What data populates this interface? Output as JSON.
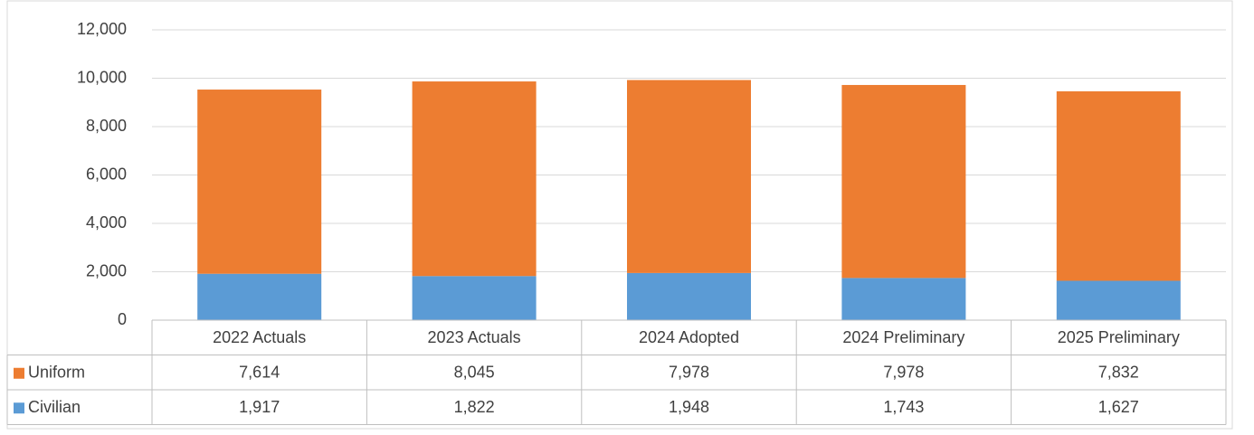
{
  "chart_data": {
    "type": "bar",
    "stacked": true,
    "categories": [
      "2022 Actuals",
      "2023 Actuals",
      "2024 Adopted",
      "2024 Preliminary",
      "2025 Preliminary"
    ],
    "series": [
      {
        "name": "Uniform",
        "color": "#ed7d31",
        "values": [
          7614,
          8045,
          7978,
          7978,
          7832
        ],
        "value_labels": [
          "7,614",
          "8,045",
          "7,978",
          "7,978",
          "7,832"
        ]
      },
      {
        "name": "Civilian",
        "color": "#5b9bd5",
        "values": [
          1917,
          1822,
          1948,
          1743,
          1627
        ],
        "value_labels": [
          "1,917",
          "1,822",
          "1,948",
          "1,743",
          "1,627"
        ]
      }
    ],
    "ylim": [
      0,
      12000
    ],
    "yticks": [
      0,
      {
        "value": 2000,
        "label": "2,000"
      },
      {
        "value": 4000,
        "label": "4,000"
      },
      {
        "value": 6000,
        "label": "6,000"
      },
      {
        "value": 8000,
        "label": "8,000"
      },
      {
        "value": 10000,
        "label": "10,000"
      },
      {
        "value": 12000,
        "label": "12,000"
      }
    ],
    "grid": true
  }
}
